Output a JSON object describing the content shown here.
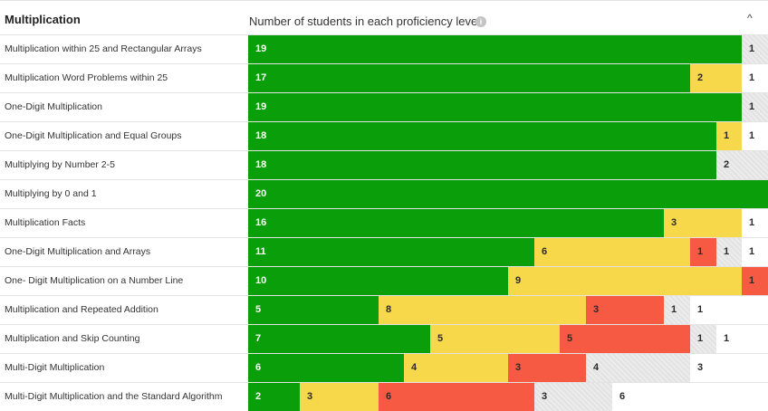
{
  "header": {
    "section_title": "Multiplication",
    "chart_title": "Number of students in each proficiency level",
    "info_icon": "i",
    "collapse_icon": "^"
  },
  "colors": {
    "green": "#0a9f0a",
    "yellow": "#f7d84b",
    "red": "#f75a43",
    "gray": "#e2e2e2",
    "white": "#ffffff"
  },
  "rows": [
    {
      "label": "Multiplication within 25 and Rectangular Arrays",
      "segments": [
        {
          "level": "green",
          "value": 19
        },
        {
          "level": "gray",
          "value": 1
        }
      ]
    },
    {
      "label": "Multiplication Word Problems within 25",
      "segments": [
        {
          "level": "green",
          "value": 17
        },
        {
          "level": "yellow",
          "value": 2
        },
        {
          "level": "white",
          "value": 1
        }
      ]
    },
    {
      "label": "One-Digit Multiplication",
      "segments": [
        {
          "level": "green",
          "value": 19
        },
        {
          "level": "gray",
          "value": 1
        }
      ]
    },
    {
      "label": "One-Digit Multiplication and Equal Groups",
      "segments": [
        {
          "level": "green",
          "value": 18
        },
        {
          "level": "yellow",
          "value": 1
        },
        {
          "level": "white",
          "value": 1
        }
      ]
    },
    {
      "label": "Multiplying by Number 2-5",
      "segments": [
        {
          "level": "green",
          "value": 18
        },
        {
          "level": "gray",
          "value": 2
        }
      ]
    },
    {
      "label": "Multiplying by 0 and 1",
      "segments": [
        {
          "level": "green",
          "value": 20
        }
      ]
    },
    {
      "label": "Multiplication Facts",
      "segments": [
        {
          "level": "green",
          "value": 16
        },
        {
          "level": "yellow",
          "value": 3
        },
        {
          "level": "white",
          "value": 1
        }
      ]
    },
    {
      "label": "One-Digit Multiplication and Arrays",
      "segments": [
        {
          "level": "green",
          "value": 11
        },
        {
          "level": "yellow",
          "value": 6
        },
        {
          "level": "red",
          "value": 1
        },
        {
          "level": "gray",
          "value": 1
        },
        {
          "level": "white",
          "value": 1
        }
      ]
    },
    {
      "label": "One- Digit Multiplication on a Number Line",
      "segments": [
        {
          "level": "green",
          "value": 10
        },
        {
          "level": "yellow",
          "value": 9
        },
        {
          "level": "red",
          "value": 1
        }
      ]
    },
    {
      "label": "Multiplication and Repeated Addition",
      "segments": [
        {
          "level": "green",
          "value": 5
        },
        {
          "level": "yellow",
          "value": 8
        },
        {
          "level": "red",
          "value": 3
        },
        {
          "level": "gray",
          "value": 1
        },
        {
          "level": "white",
          "value": 1
        }
      ]
    },
    {
      "label": "Multiplication and Skip Counting",
      "segments": [
        {
          "level": "green",
          "value": 7
        },
        {
          "level": "yellow",
          "value": 5
        },
        {
          "level": "red",
          "value": 5
        },
        {
          "level": "gray",
          "value": 1
        },
        {
          "level": "white",
          "value": 1
        }
      ]
    },
    {
      "label": "Multi-Digit Multiplication",
      "segments": [
        {
          "level": "green",
          "value": 6
        },
        {
          "level": "yellow",
          "value": 4
        },
        {
          "level": "red",
          "value": 3
        },
        {
          "level": "gray",
          "value": 4
        },
        {
          "level": "white",
          "value": 3
        }
      ]
    },
    {
      "label": "Multi-Digit Multiplication and the Standard Algorithm",
      "segments": [
        {
          "level": "green",
          "value": 2
        },
        {
          "level": "yellow",
          "value": 3
        },
        {
          "level": "red",
          "value": 6
        },
        {
          "level": "gray",
          "value": 3
        },
        {
          "level": "white",
          "value": 6
        }
      ]
    }
  ]
}
